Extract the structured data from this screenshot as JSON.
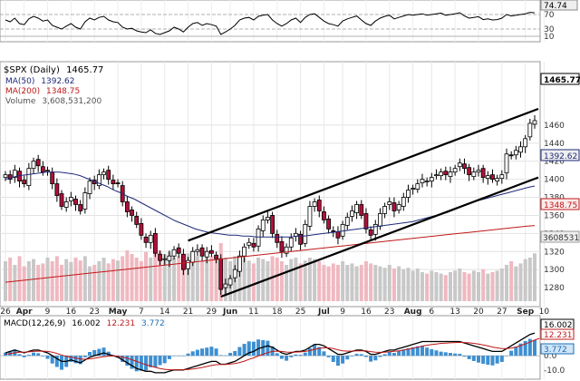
{
  "chart_data": {
    "type": "candlestick",
    "symbol_label": "$SPX (Daily)",
    "last_value": "1465.77",
    "price_box": "1465.77",
    "legend": [
      {
        "name": "MA(50)",
        "value": "1392.62",
        "color": "#1f2a7a"
      },
      {
        "name": "MA(200)",
        "value": "1348.75",
        "color": "#c01818"
      },
      {
        "name": "Volume",
        "value": "3,608,531,200",
        "color": "#999999"
      }
    ],
    "x_tick_labels": [
      "26",
      "Apr",
      "9",
      "16",
      "23",
      "May",
      "7",
      "14",
      "21",
      "29",
      "Jun",
      "11",
      "18",
      "25",
      "Jul",
      "9",
      "16",
      "23",
      "Aug",
      "6",
      "13",
      "20",
      "27",
      "Sep",
      "10"
    ],
    "x_tick_index": [
      0,
      4,
      9,
      14,
      19,
      24,
      29,
      34,
      39,
      44,
      48,
      53,
      58,
      63,
      68,
      72,
      77,
      82,
      87,
      91,
      96,
      101,
      106,
      111,
      115
    ],
    "x_tick_bold": [
      false,
      true,
      false,
      false,
      false,
      true,
      false,
      false,
      false,
      false,
      true,
      false,
      false,
      false,
      true,
      false,
      false,
      false,
      true,
      false,
      false,
      false,
      false,
      true,
      false
    ],
    "price_axis": {
      "ylim": [
        1265,
        1480
      ],
      "ticks": [
        1280,
        1300,
        1320,
        1340,
        1360,
        1380,
        1400,
        1420,
        1440,
        1460
      ]
    },
    "ma_labels": {
      "ma50": "1392.62",
      "ma200": "1348.75",
      "volume": "3608531"
    },
    "rsi": {
      "ticks": [
        "70",
        "30",
        "10"
      ],
      "last_label": "74.74",
      "ylim": [
        0,
        100
      ]
    },
    "macd": {
      "label": "MACD(12,26,9)",
      "macd": "16.002",
      "signal": "12.231",
      "hist": "3.772",
      "ticks": [
        "0.0",
        "-10.0"
      ],
      "ylim": [
        -14,
        18
      ],
      "right_labels": [
        "16.002",
        "12.231",
        "3.772"
      ]
    },
    "ohlc_close": [
      1405,
      1400,
      1410,
      1398,
      1395,
      1412,
      1420,
      1415,
      1408,
      1410,
      1395,
      1382,
      1370,
      1375,
      1380,
      1372,
      1365,
      1385,
      1398,
      1395,
      1405,
      1408,
      1400,
      1395,
      1395,
      1375,
      1364,
      1360,
      1350,
      1338,
      1330,
      1338,
      1318,
      1310,
      1312,
      1315,
      1322,
      1318,
      1300,
      1310,
      1320,
      1322,
      1315,
      1320,
      1318,
      1312,
      1278,
      1284,
      1290,
      1300,
      1315,
      1325,
      1330,
      1325,
      1345,
      1355,
      1358,
      1340,
      1330,
      1320,
      1325,
      1335,
      1340,
      1328,
      1350,
      1370,
      1375,
      1365,
      1355,
      1345,
      1342,
      1335,
      1350,
      1358,
      1365,
      1372,
      1360,
      1345,
      1338,
      1350,
      1362,
      1370,
      1375,
      1365,
      1372,
      1380,
      1388,
      1390,
      1395,
      1400,
      1398,
      1402,
      1405,
      1408,
      1405,
      1408,
      1412,
      1418,
      1412,
      1405,
      1408,
      1410,
      1402,
      1404,
      1400,
      1401,
      1405,
      1428,
      1426,
      1432,
      1436,
      1445,
      1462,
      1465
    ],
    "ma50": [
      1400,
      1402,
      1404,
      1405,
      1406,
      1407,
      1408,
      1408,
      1408,
      1407,
      1406,
      1404,
      1401,
      1398,
      1395,
      1392,
      1388,
      1385,
      1381,
      1378,
      1374,
      1370,
      1366,
      1362,
      1358,
      1354,
      1351,
      1348,
      1345,
      1343,
      1341,
      1340,
      1339,
      1338,
      1338,
      1337,
      1337,
      1336,
      1336,
      1336,
      1336,
      1336,
      1336,
      1337,
      1337,
      1338,
      1339,
      1340,
      1341,
      1342,
      1343,
      1344,
      1345,
      1346,
      1347,
      1348,
      1349,
      1350,
      1351,
      1352,
      1353,
      1355,
      1357,
      1359,
      1361,
      1363,
      1366,
      1369,
      1372,
      1375,
      1377,
      1379,
      1381,
      1383,
      1385,
      1387,
      1389,
      1391,
      1392.62
    ],
    "ma200": [
      1286,
      1287,
      1288,
      1289,
      1290,
      1291,
      1292,
      1293,
      1294,
      1295,
      1296,
      1297,
      1298,
      1299,
      1300,
      1301,
      1302,
      1303,
      1304,
      1305,
      1306,
      1307,
      1308,
      1309,
      1310,
      1311,
      1312,
      1313,
      1314,
      1315,
      1316,
      1317,
      1318,
      1319,
      1320,
      1321,
      1322,
      1323,
      1324,
      1325,
      1326,
      1327,
      1328,
      1329,
      1330,
      1331,
      1332,
      1333,
      1334,
      1335,
      1336,
      1337,
      1338,
      1339,
      1340,
      1341,
      1342,
      1343,
      1344,
      1345,
      1346,
      1347,
      1348,
      1348.75
    ],
    "volume_rel": [
      0.55,
      0.6,
      0.5,
      0.62,
      0.48,
      0.55,
      0.58,
      0.5,
      0.52,
      0.6,
      0.55,
      0.62,
      0.5,
      0.58,
      0.54,
      0.6,
      0.56,
      0.62,
      0.48,
      0.5,
      0.55,
      0.6,
      0.52,
      0.58,
      0.56,
      0.62,
      0.7,
      0.65,
      0.6,
      0.55,
      0.68,
      0.6,
      0.72,
      0.7,
      0.65,
      0.68,
      0.6,
      0.62,
      0.58,
      0.66,
      0.7,
      0.62,
      0.55,
      0.6,
      0.62,
      0.58,
      0.8,
      0.6,
      0.55,
      0.62,
      0.58,
      0.6,
      0.56,
      0.52,
      0.6,
      0.58,
      0.55,
      0.62,
      0.6,
      0.55,
      0.5,
      0.58,
      0.6,
      0.52,
      0.56,
      0.6,
      0.58,
      0.55,
      0.5,
      0.48,
      0.52,
      0.5,
      0.55,
      0.5,
      0.52,
      0.48,
      0.5,
      0.55,
      0.52,
      0.5,
      0.48,
      0.46,
      0.5,
      0.45,
      0.48,
      0.44,
      0.46,
      0.42,
      0.45,
      0.4,
      0.38,
      0.42,
      0.4,
      0.38,
      0.36,
      0.4,
      0.42,
      0.45,
      0.4,
      0.38,
      0.42,
      0.4,
      0.44,
      0.38,
      0.4,
      0.42,
      0.45,
      0.5,
      0.55,
      0.48,
      0.52,
      0.58,
      0.6,
      0.66
    ],
    "rsi_values": [
      55,
      50,
      60,
      45,
      42,
      58,
      65,
      60,
      52,
      55,
      40,
      35,
      30,
      38,
      45,
      35,
      30,
      50,
      60,
      55,
      62,
      65,
      55,
      50,
      48,
      35,
      30,
      32,
      25,
      22,
      20,
      28,
      18,
      15,
      20,
      25,
      35,
      30,
      22,
      35,
      45,
      48,
      40,
      45,
      42,
      38,
      15,
      22,
      30,
      40,
      55,
      60,
      62,
      55,
      65,
      68,
      70,
      55,
      45,
      38,
      45,
      55,
      60,
      48,
      62,
      70,
      72,
      62,
      52,
      45,
      42,
      38,
      52,
      58,
      62,
      66,
      55,
      45,
      40,
      52,
      60,
      65,
      68,
      58,
      62,
      66,
      70,
      68,
      70,
      72,
      68,
      70,
      72,
      74,
      68,
      70,
      72,
      75,
      66,
      60,
      62,
      64,
      56,
      58,
      55,
      56,
      60,
      70,
      66,
      68,
      70,
      72,
      76,
      74.74
    ],
    "macd_line": [
      2,
      3,
      4,
      3,
      2,
      3,
      4,
      4,
      3,
      2,
      0,
      -2,
      -4,
      -4,
      -3,
      -4,
      -5,
      -3,
      -1,
      0,
      1,
      2,
      1,
      0,
      -1,
      -3,
      -5,
      -7,
      -9,
      -10,
      -11,
      -11,
      -12,
      -12,
      -12,
      -11,
      -10,
      -10,
      -10,
      -9,
      -8,
      -7,
      -6,
      -5,
      -4,
      -4,
      -6,
      -6,
      -5,
      -4,
      -2,
      0,
      2,
      3,
      5,
      6,
      7,
      6,
      4,
      2,
      1,
      2,
      3,
      3,
      4,
      6,
      8,
      8,
      7,
      5,
      3,
      1,
      1,
      2,
      3,
      4,
      4,
      3,
      1,
      1,
      2,
      3,
      4,
      4,
      5,
      6,
      7,
      8,
      9,
      10,
      10,
      10,
      10,
      10,
      10,
      10,
      10,
      10,
      9,
      8,
      7,
      6,
      5,
      4,
      3,
      3,
      3,
      5,
      7,
      9,
      11,
      13,
      15,
      16.002
    ],
    "macd_signal": [
      1,
      1.5,
      2,
      2.5,
      2.5,
      2.7,
      3,
      3.2,
      3.2,
      3,
      2.5,
      1.6,
      0.5,
      -0.4,
      -1,
      -1.6,
      -2.3,
      -2.5,
      -2.2,
      -1.8,
      -1.2,
      -0.6,
      -0.3,
      -0.2,
      -0.4,
      -1,
      -1.8,
      -2.8,
      -4,
      -5.2,
      -6.3,
      -7.3,
      -8.2,
      -9,
      -9.6,
      -9.9,
      -9.9,
      -9.9,
      -9.9,
      -9.7,
      -9.4,
      -8.9,
      -8.3,
      -7.6,
      -6.9,
      -6.3,
      -6.2,
      -6.1,
      -5.9,
      -5.5,
      -4.8,
      -3.8,
      -2.6,
      -1.5,
      -0.2,
      1.0,
      2.2,
      3,
      3.2,
      3,
      2.6,
      2.5,
      2.6,
      2.7,
      3,
      3.6,
      4.5,
      5.2,
      5.6,
      5.5,
      5,
      4.2,
      3.5,
      3.2,
      3.2,
      3.4,
      3.5,
      3.4,
      2.9,
      2.5,
      2.4,
      2.5,
      2.8,
      3.1,
      3.5,
      4,
      4.6,
      5.3,
      6,
      6.8,
      7.4,
      7.9,
      8.3,
      8.7,
      8.9,
      9.1,
      9.3,
      9.4,
      9.3,
      9.1,
      8.7,
      8.2,
      7.6,
      6.9,
      6.1,
      5.5,
      5,
      5,
      5.4,
      6.1,
      7.1,
      8.3,
      9.6,
      11,
      12.231
    ]
  }
}
